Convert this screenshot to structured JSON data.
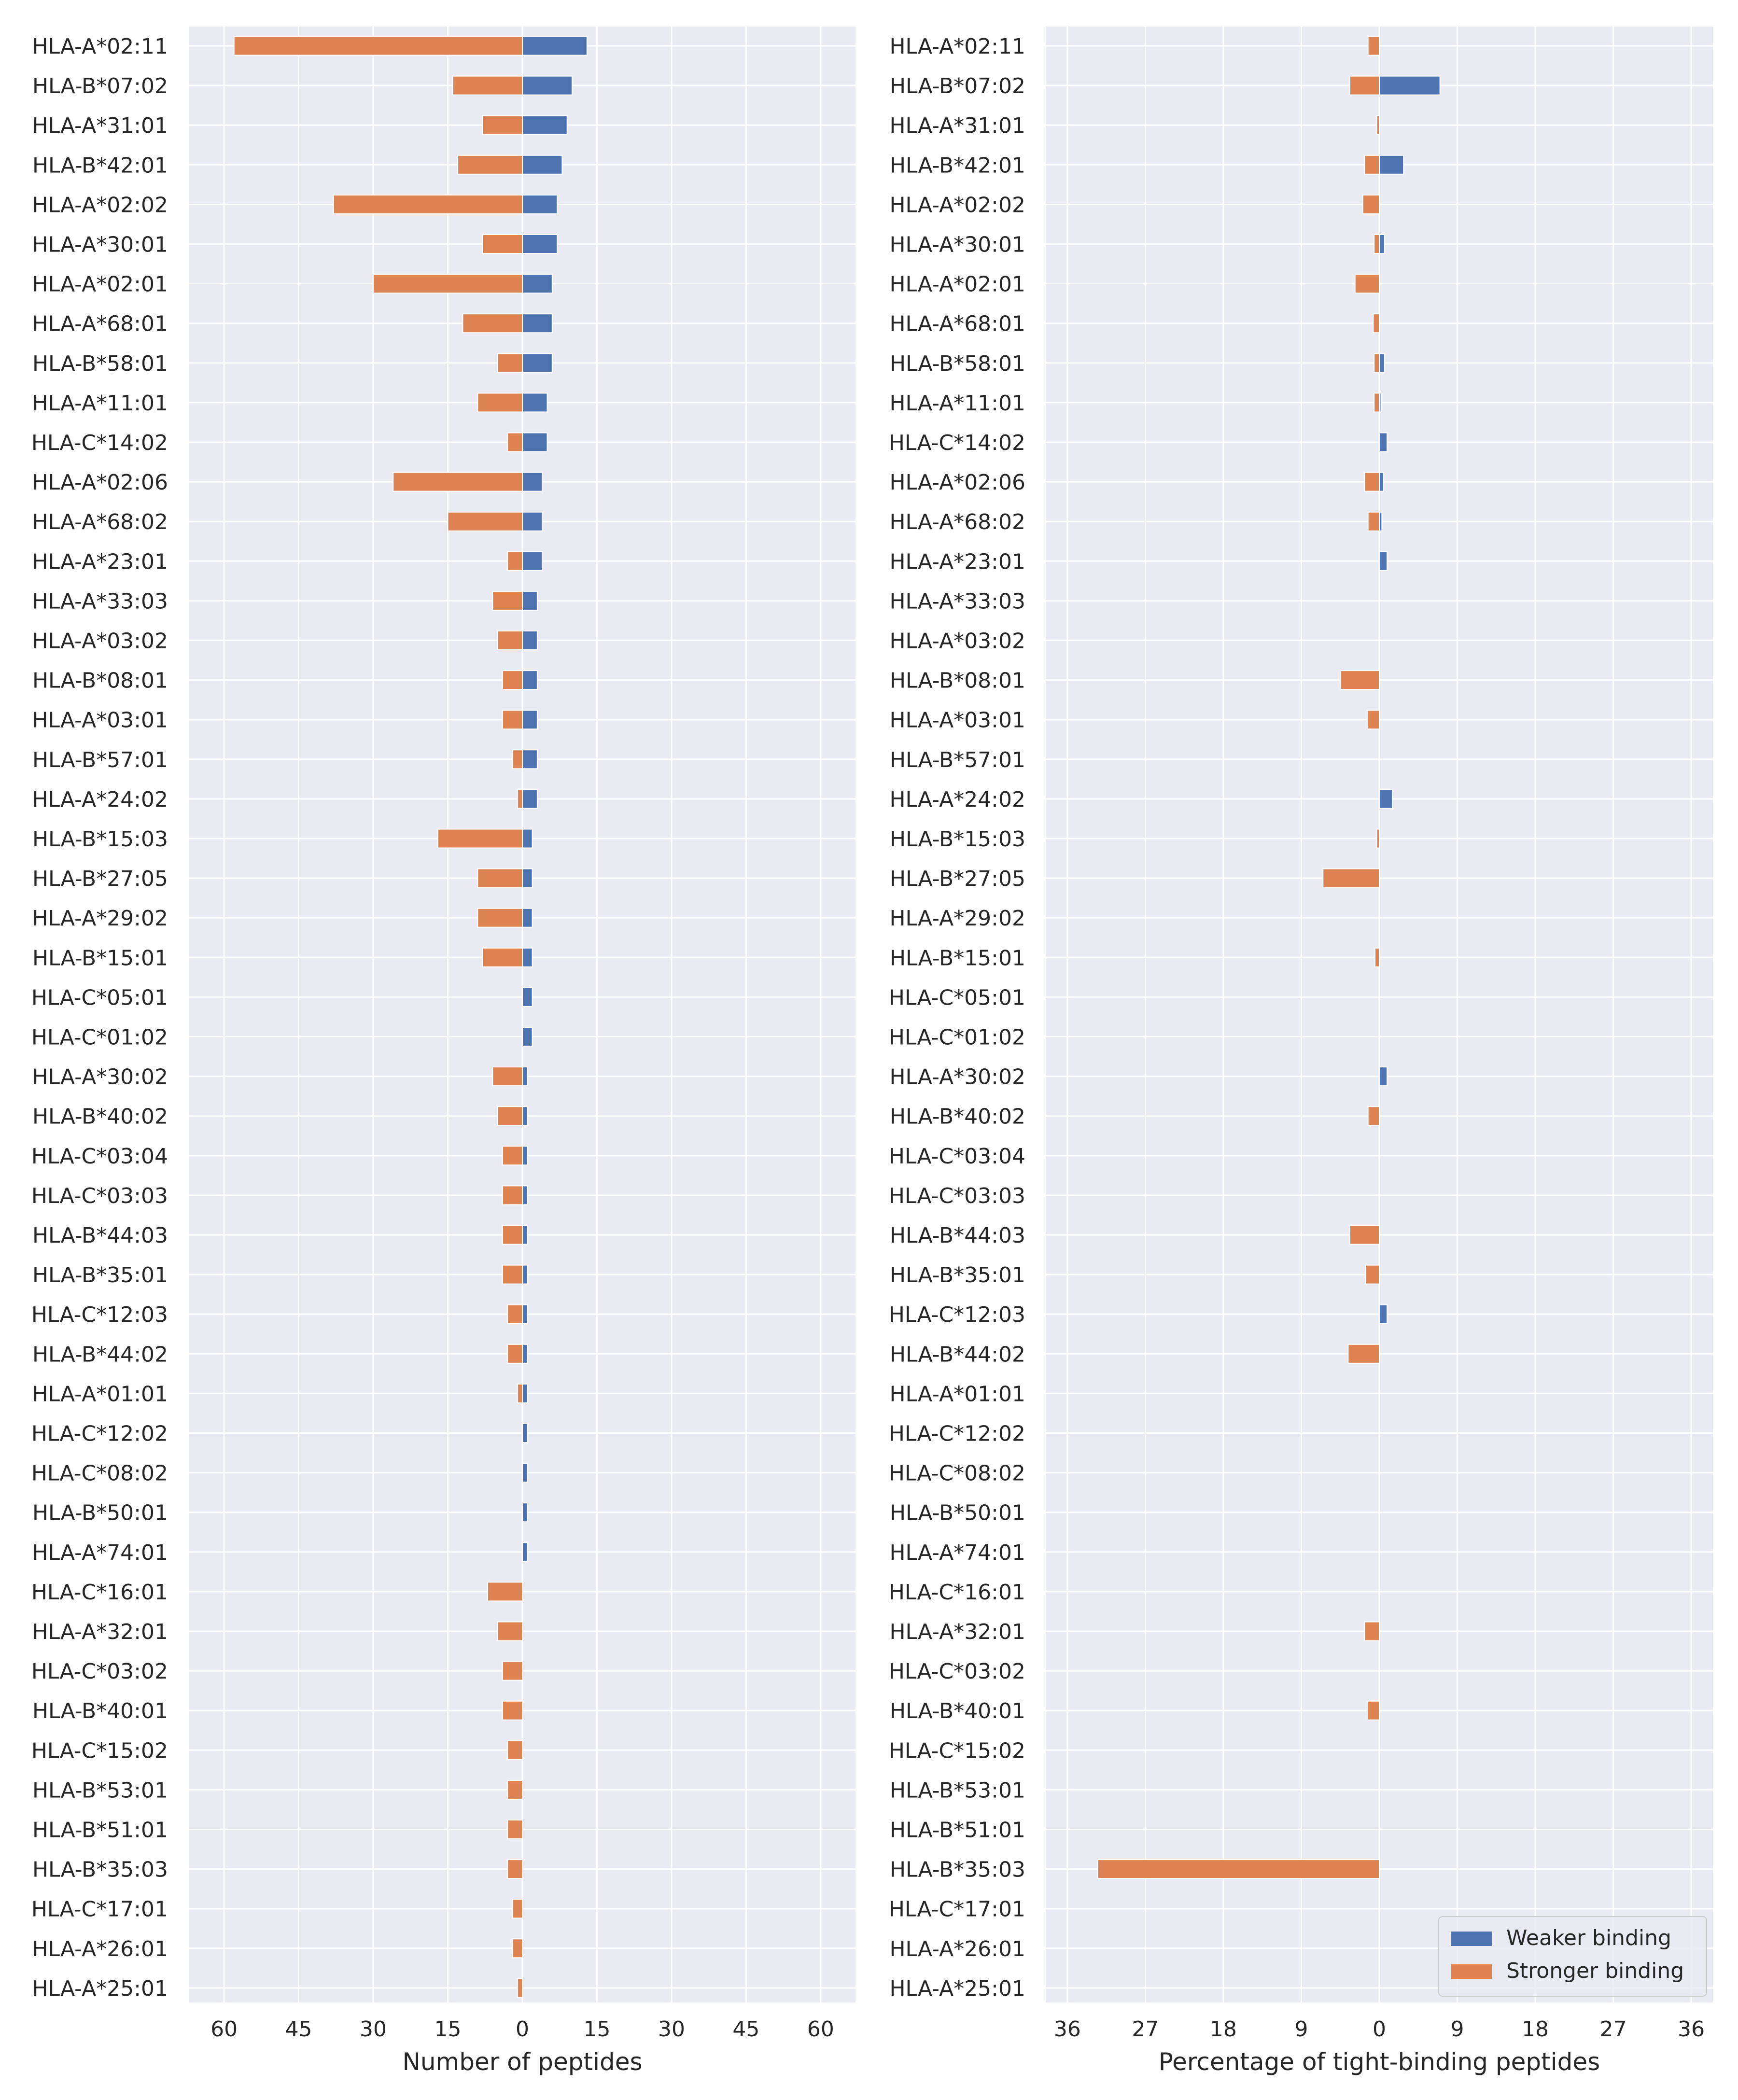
{
  "colors": {
    "weaker": "#4c72b0",
    "stronger": "#dd8452",
    "panel_bg": "#eaeaf2",
    "grid": "#ffffff",
    "text": "#262626"
  },
  "legend": {
    "location": "lower-right",
    "items": [
      "Weaker binding",
      "Stronger binding"
    ]
  },
  "chart_data": [
    {
      "type": "bar",
      "orientation": "horizontal-diverging",
      "xlabel": "Number of peptides",
      "xlim": [
        -67,
        67
      ],
      "xticks": [
        -60,
        -45,
        -30,
        -15,
        0,
        15,
        30,
        45,
        60
      ],
      "xtick_labels": [
        "60",
        "45",
        "30",
        "15",
        "0",
        "15",
        "30",
        "45",
        "60"
      ],
      "grid": true,
      "categories": [
        "HLA-A*02:11",
        "HLA-B*07:02",
        "HLA-A*31:01",
        "HLA-B*42:01",
        "HLA-A*02:02",
        "HLA-A*30:01",
        "HLA-A*02:01",
        "HLA-A*68:01",
        "HLA-B*58:01",
        "HLA-A*11:01",
        "HLA-C*14:02",
        "HLA-A*02:06",
        "HLA-A*68:02",
        "HLA-A*23:01",
        "HLA-A*33:03",
        "HLA-A*03:02",
        "HLA-B*08:01",
        "HLA-A*03:01",
        "HLA-B*57:01",
        "HLA-A*24:02",
        "HLA-B*15:03",
        "HLA-B*27:05",
        "HLA-A*29:02",
        "HLA-B*15:01",
        "HLA-C*05:01",
        "HLA-C*01:02",
        "HLA-A*30:02",
        "HLA-B*40:02",
        "HLA-C*03:04",
        "HLA-C*03:03",
        "HLA-B*44:03",
        "HLA-B*35:01",
        "HLA-C*12:03",
        "HLA-B*44:02",
        "HLA-A*01:01",
        "HLA-C*12:02",
        "HLA-C*08:02",
        "HLA-B*50:01",
        "HLA-A*74:01",
        "HLA-C*16:01",
        "HLA-A*32:01",
        "HLA-C*03:02",
        "HLA-B*40:01",
        "HLA-C*15:02",
        "HLA-B*53:01",
        "HLA-B*51:01",
        "HLA-B*35:03",
        "HLA-C*17:01",
        "HLA-A*26:01",
        "HLA-A*25:01"
      ],
      "series": [
        {
          "name": "Weaker binding",
          "values": [
            13,
            10,
            9,
            8,
            7,
            7,
            6,
            6,
            6,
            5,
            5,
            4,
            4,
            4,
            3,
            3,
            3,
            3,
            3,
            3,
            2,
            2,
            2,
            2,
            2,
            2,
            1,
            1,
            1,
            1,
            1,
            1,
            1,
            1,
            1,
            1,
            1,
            1,
            1,
            0,
            0,
            0,
            0,
            0,
            0,
            0,
            0,
            0,
            0,
            0
          ]
        },
        {
          "name": "Stronger binding",
          "values": [
            58,
            14,
            8,
            13,
            38,
            8,
            30,
            12,
            5,
            9,
            3,
            26,
            15,
            3,
            6,
            5,
            4,
            4,
            2,
            1,
            17,
            9,
            9,
            8,
            0,
            0,
            6,
            5,
            4,
            4,
            4,
            4,
            3,
            3,
            1,
            0,
            0,
            0,
            0,
            7,
            5,
            4,
            4,
            3,
            3,
            3,
            3,
            2,
            2,
            1
          ]
        }
      ]
    },
    {
      "type": "bar",
      "orientation": "horizontal-diverging",
      "xlabel": "Percentage of tight-binding peptides",
      "xlim": [
        -38.5,
        38.5
      ],
      "xticks": [
        -36,
        -27,
        -18,
        -9,
        0,
        9,
        18,
        27,
        36
      ],
      "xtick_labels": [
        "36",
        "27",
        "18",
        "9",
        "0",
        "9",
        "18",
        "27",
        "36"
      ],
      "grid": true,
      "categories": [
        "HLA-A*02:11",
        "HLA-B*07:02",
        "HLA-A*31:01",
        "HLA-B*42:01",
        "HLA-A*02:02",
        "HLA-A*30:01",
        "HLA-A*02:01",
        "HLA-A*68:01",
        "HLA-B*58:01",
        "HLA-A*11:01",
        "HLA-C*14:02",
        "HLA-A*02:06",
        "HLA-A*68:02",
        "HLA-A*23:01",
        "HLA-A*33:03",
        "HLA-A*03:02",
        "HLA-B*08:01",
        "HLA-A*03:01",
        "HLA-B*57:01",
        "HLA-A*24:02",
        "HLA-B*15:03",
        "HLA-B*27:05",
        "HLA-A*29:02",
        "HLA-B*15:01",
        "HLA-C*05:01",
        "HLA-C*01:02",
        "HLA-A*30:02",
        "HLA-B*40:02",
        "HLA-C*03:04",
        "HLA-C*03:03",
        "HLA-B*44:03",
        "HLA-B*35:01",
        "HLA-C*12:03",
        "HLA-B*44:02",
        "HLA-A*01:01",
        "HLA-C*12:02",
        "HLA-C*08:02",
        "HLA-B*50:01",
        "HLA-A*74:01",
        "HLA-C*16:01",
        "HLA-A*32:01",
        "HLA-C*03:02",
        "HLA-B*40:01",
        "HLA-C*15:02",
        "HLA-B*53:01",
        "HLA-B*51:01",
        "HLA-B*35:03",
        "HLA-C*17:01",
        "HLA-A*26:01",
        "HLA-A*25:01"
      ],
      "series": [
        {
          "name": "Weaker binding",
          "values": [
            0,
            7.0,
            0,
            2.8,
            0,
            0.6,
            0,
            0,
            0.6,
            0.2,
            0.9,
            0.5,
            0.3,
            0.9,
            0,
            0,
            0,
            0,
            0,
            1.5,
            0,
            0,
            0,
            0,
            0,
            0,
            0.9,
            0,
            0,
            0,
            0,
            0,
            0.9,
            0,
            0,
            0,
            0,
            0,
            0,
            0,
            0,
            0,
            0,
            0,
            0,
            0,
            0,
            0,
            0,
            0
          ]
        },
        {
          "name": "Stronger binding",
          "values": [
            1.3,
            3.4,
            0.3,
            1.7,
            1.9,
            0.6,
            2.8,
            0.7,
            0.6,
            0.6,
            0,
            1.7,
            1.3,
            0,
            0,
            0,
            4.5,
            1.4,
            0,
            0,
            0.3,
            6.5,
            0,
            0.5,
            0,
            0,
            0,
            1.3,
            0,
            0,
            3.4,
            1.6,
            0,
            3.6,
            0,
            0,
            0,
            0,
            0,
            0,
            1.7,
            0,
            1.4,
            0,
            0,
            0,
            32.5,
            0,
            0,
            0
          ]
        }
      ]
    }
  ]
}
